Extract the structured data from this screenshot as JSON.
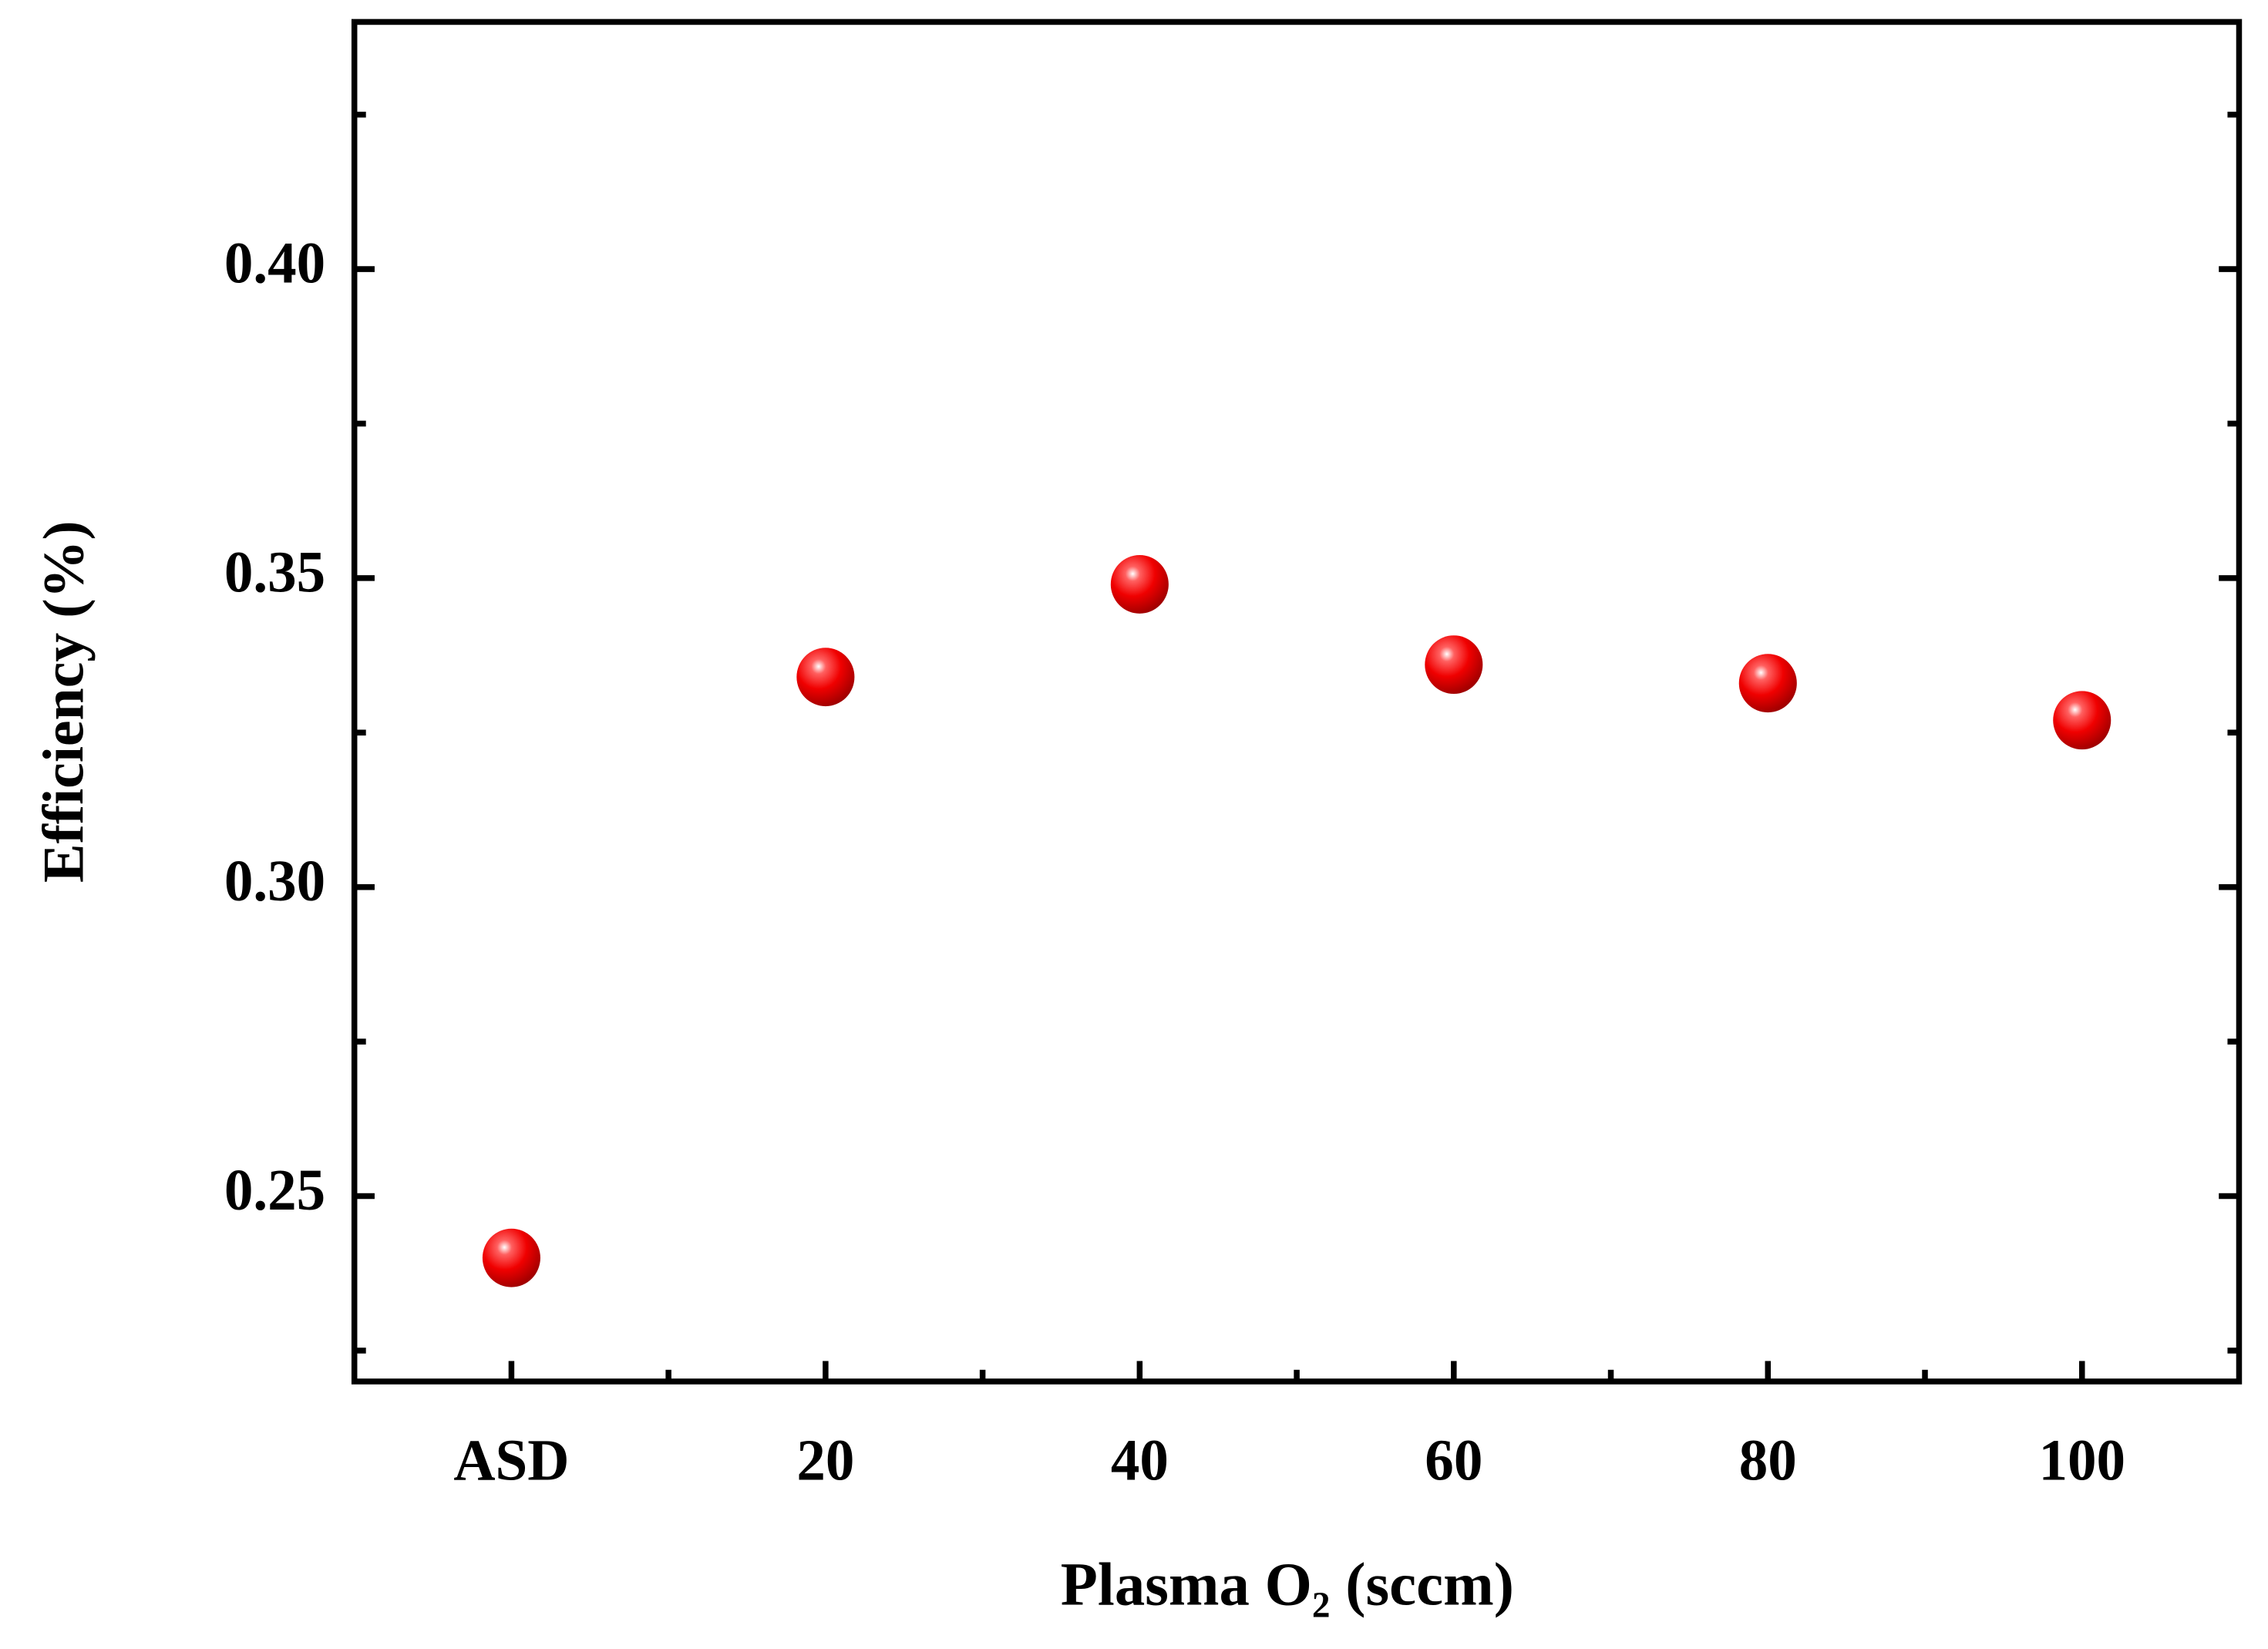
{
  "chart_data": {
    "type": "scatter",
    "xlabel": "Plasma O₂ (sccm)",
    "ylabel": "Efficiency (%)",
    "categories": [
      "ASD",
      "20",
      "40",
      "60",
      "80",
      "100"
    ],
    "values": [
      0.24,
      0.334,
      0.349,
      0.336,
      0.333,
      0.327
    ],
    "color": "#ff0000",
    "ylim": [
      0.22,
      0.44
    ],
    "yticks": [
      {
        "value": 0.25,
        "label": "0.25"
      },
      {
        "value": 0.3,
        "label": "0.30"
      },
      {
        "value": 0.35,
        "label": "0.35"
      },
      {
        "value": 0.4,
        "label": "0.40"
      }
    ],
    "yminorticks": [
      0.225,
      0.275,
      0.325,
      0.375,
      0.425
    ],
    "grid": false
  }
}
